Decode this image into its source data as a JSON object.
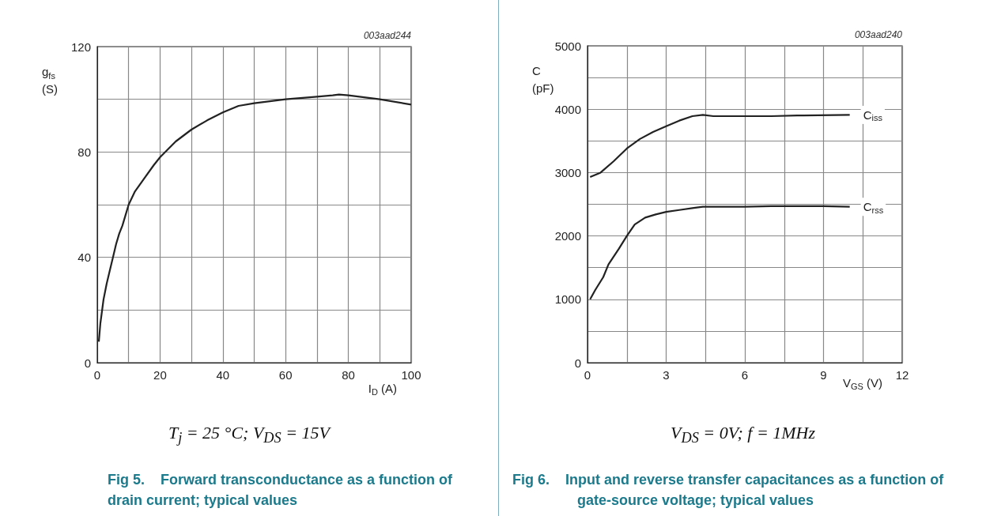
{
  "chart_data": [
    {
      "type": "line",
      "title": "Fig 5.    Forward transconductance as a function of drain current; typical values",
      "subtitle": "T$_{j}$ = 25 °C; V$_{DS}$ = 15V",
      "xlabel": "I$_{D}$ (A)",
      "ylabel": "g$_{fs}$ (S)",
      "annotations": [
        "003aad244"
      ],
      "marker": "none",
      "grid": true,
      "xlim": [
        0,
        100
      ],
      "xticks": [
        0,
        {
          "value": 10,
          "label": null
        },
        20,
        {
          "value": 30,
          "label": null
        },
        40,
        {
          "value": 50,
          "label": null
        },
        60,
        {
          "value": 70,
          "label": null
        },
        80,
        {
          "value": 90,
          "label": null
        },
        100
      ],
      "ylim": [
        0,
        120
      ],
      "yticks": [
        0,
        {
          "value": 20,
          "label": null
        },
        40,
        {
          "value": 60,
          "label": null
        },
        80,
        {
          "value": 100,
          "label": null
        },
        120
      ],
      "series": [
        {
          "color": "#222222",
          "x": [
            0.5,
            1,
            2,
            3,
            4,
            5,
            6,
            7,
            8,
            9,
            10,
            12,
            15,
            18,
            20,
            25,
            30,
            35,
            40,
            45,
            50,
            60,
            70,
            75,
            77,
            80,
            90,
            100
          ],
          "values": [
            8,
            15,
            24,
            30,
            35,
            40,
            45,
            49,
            52,
            56,
            60,
            65,
            70,
            75,
            78,
            84,
            88.5,
            92,
            95,
            97.5,
            98.5,
            100,
            101,
            101.5,
            101.8,
            101.5,
            100,
            98
          ]
        }
      ]
    },
    {
      "type": "line",
      "title": "Fig 6.    Input and reverse transfer capacitances as a function of gate-source voltage; typical values",
      "subtitle": "V$_{DS}$ = 0V; f = 1MHz",
      "xlabel": "V$_{GS}$ (V)",
      "ylabel": "C (pF)",
      "annotations": [
        "003aad240"
      ],
      "marker": "none",
      "grid": true,
      "xlim": [
        0,
        12
      ],
      "xticks": [
        0,
        {
          "value": 1.5,
          "label": null
        },
        3,
        {
          "value": 4.5,
          "label": null
        },
        6,
        {
          "value": 7.5,
          "label": null
        },
        9,
        {
          "value": 10.5,
          "label": null
        },
        12
      ],
      "ylim": [
        0,
        5000
      ],
      "yticks": [
        0,
        {
          "value": 500,
          "label": null
        },
        1000,
        {
          "value": 1500,
          "label": null
        },
        2000,
        {
          "value": 2500,
          "label": null
        },
        3000,
        {
          "value": 3500,
          "label": null
        },
        4000,
        {
          "value": 4500,
          "label": null
        },
        5000
      ],
      "series": [
        {
          "name": "C$_{iss}$",
          "color": "#222222",
          "x": [
            0.1,
            0.5,
            1,
            1.5,
            2,
            2.5,
            3,
            3.5,
            4,
            4.4,
            4.8,
            6,
            7,
            8,
            10
          ],
          "values": [
            2930,
            3000,
            3180,
            3380,
            3530,
            3640,
            3730,
            3820,
            3890,
            3910,
            3890,
            3890,
            3890,
            3900,
            3910
          ]
        },
        {
          "name": "C$_{rss}$",
          "color": "#222222",
          "x": [
            0.1,
            0.3,
            0.6,
            0.8,
            1.2,
            1.5,
            1.8,
            2.2,
            2.6,
            3,
            3.5,
            4,
            4.4,
            6,
            7,
            9,
            10
          ],
          "values": [
            1000,
            1150,
            1350,
            1550,
            1800,
            2000,
            2180,
            2290,
            2340,
            2380,
            2410,
            2440,
            2460,
            2460,
            2470,
            2470,
            2460
          ]
        }
      ]
    }
  ]
}
